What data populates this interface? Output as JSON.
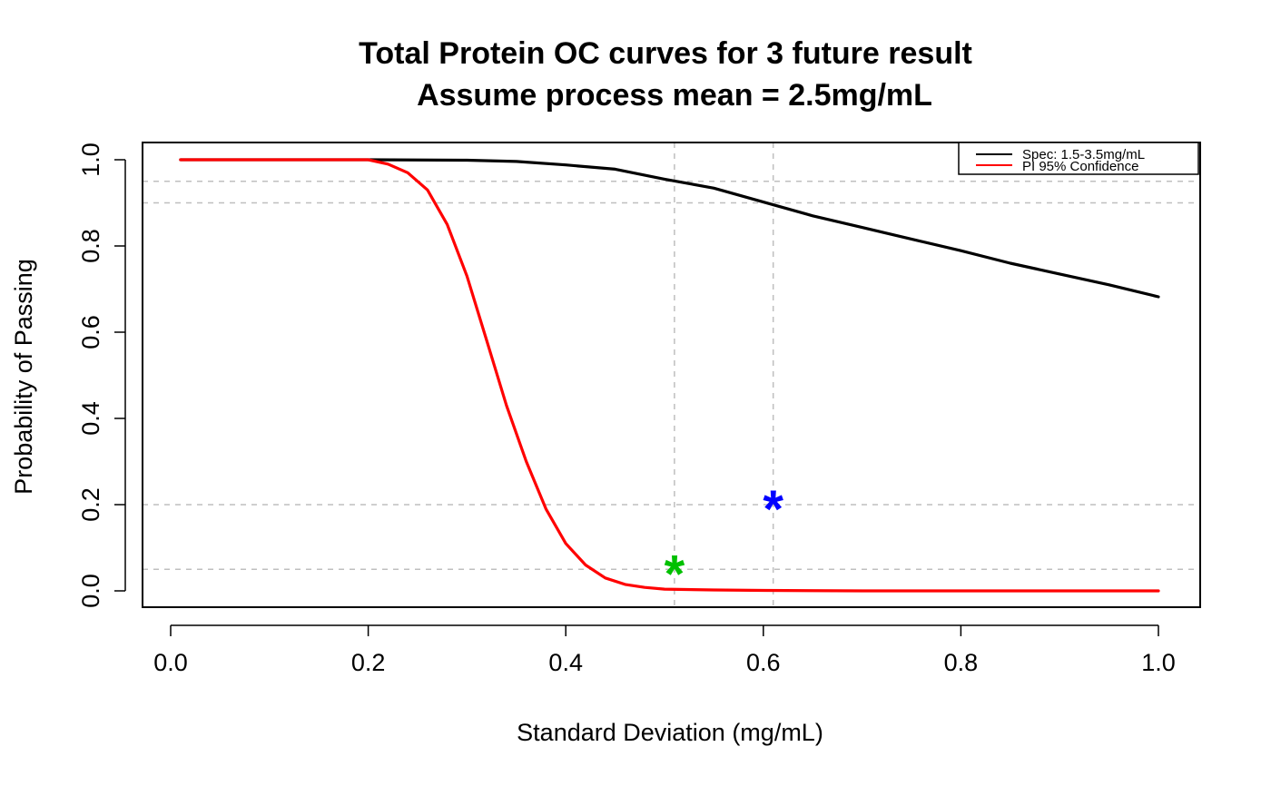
{
  "chart_data": {
    "type": "line",
    "title_line1": "Total Protein OC curves for 3 future result",
    "title_line2": "Assume process mean = 2.5mg/mL",
    "xlabel": "Standard Deviation (mg/mL)",
    "ylabel": "Probability of Passing",
    "xlim": [
      0.0,
      1.0
    ],
    "ylim": [
      0.0,
      1.0
    ],
    "x_ticks": [
      "0.0",
      "0.2",
      "0.4",
      "0.6",
      "0.8",
      "1.0"
    ],
    "y_ticks": [
      "0.0",
      "0.2",
      "0.4",
      "0.6",
      "0.8",
      "1.0"
    ],
    "legend_position": "top-right",
    "series": [
      {
        "name": "Spec: 1.5-3.5mg/mL",
        "color": "#000000",
        "x": [
          0.01,
          0.2,
          0.3,
          0.35,
          0.4,
          0.45,
          0.5,
          0.55,
          0.6,
          0.65,
          0.7,
          0.75,
          0.8,
          0.85,
          0.9,
          0.95,
          1.0
        ],
        "y": [
          1.0,
          1.0,
          0.999,
          0.996,
          0.988,
          0.978,
          0.955,
          0.934,
          0.902,
          0.87,
          0.843,
          0.816,
          0.789,
          0.76,
          0.735,
          0.71,
          0.682
        ]
      },
      {
        "name": "PI 95% Confidence",
        "color": "#ff0000",
        "x": [
          0.01,
          0.2,
          0.22,
          0.24,
          0.26,
          0.28,
          0.3,
          0.32,
          0.34,
          0.36,
          0.38,
          0.4,
          0.42,
          0.44,
          0.46,
          0.48,
          0.5,
          0.55,
          0.6,
          0.7,
          0.8,
          1.0
        ],
        "y": [
          1.0,
          1.0,
          0.99,
          0.97,
          0.93,
          0.85,
          0.73,
          0.58,
          0.43,
          0.3,
          0.19,
          0.11,
          0.06,
          0.03,
          0.015,
          0.008,
          0.004,
          0.002,
          0.001,
          0.0,
          0.0,
          0.0
        ]
      }
    ],
    "reference_lines": {
      "horizontal": [
        0.95,
        0.9,
        0.2,
        0.05
      ],
      "vertical": [
        0.51,
        0.61
      ],
      "color": "#bfbfbf"
    },
    "points": [
      {
        "x": 0.51,
        "y": 0.05,
        "symbol": "*",
        "color": "#00c000"
      },
      {
        "x": 0.61,
        "y": 0.2,
        "symbol": "*",
        "color": "#0000ff"
      }
    ]
  }
}
